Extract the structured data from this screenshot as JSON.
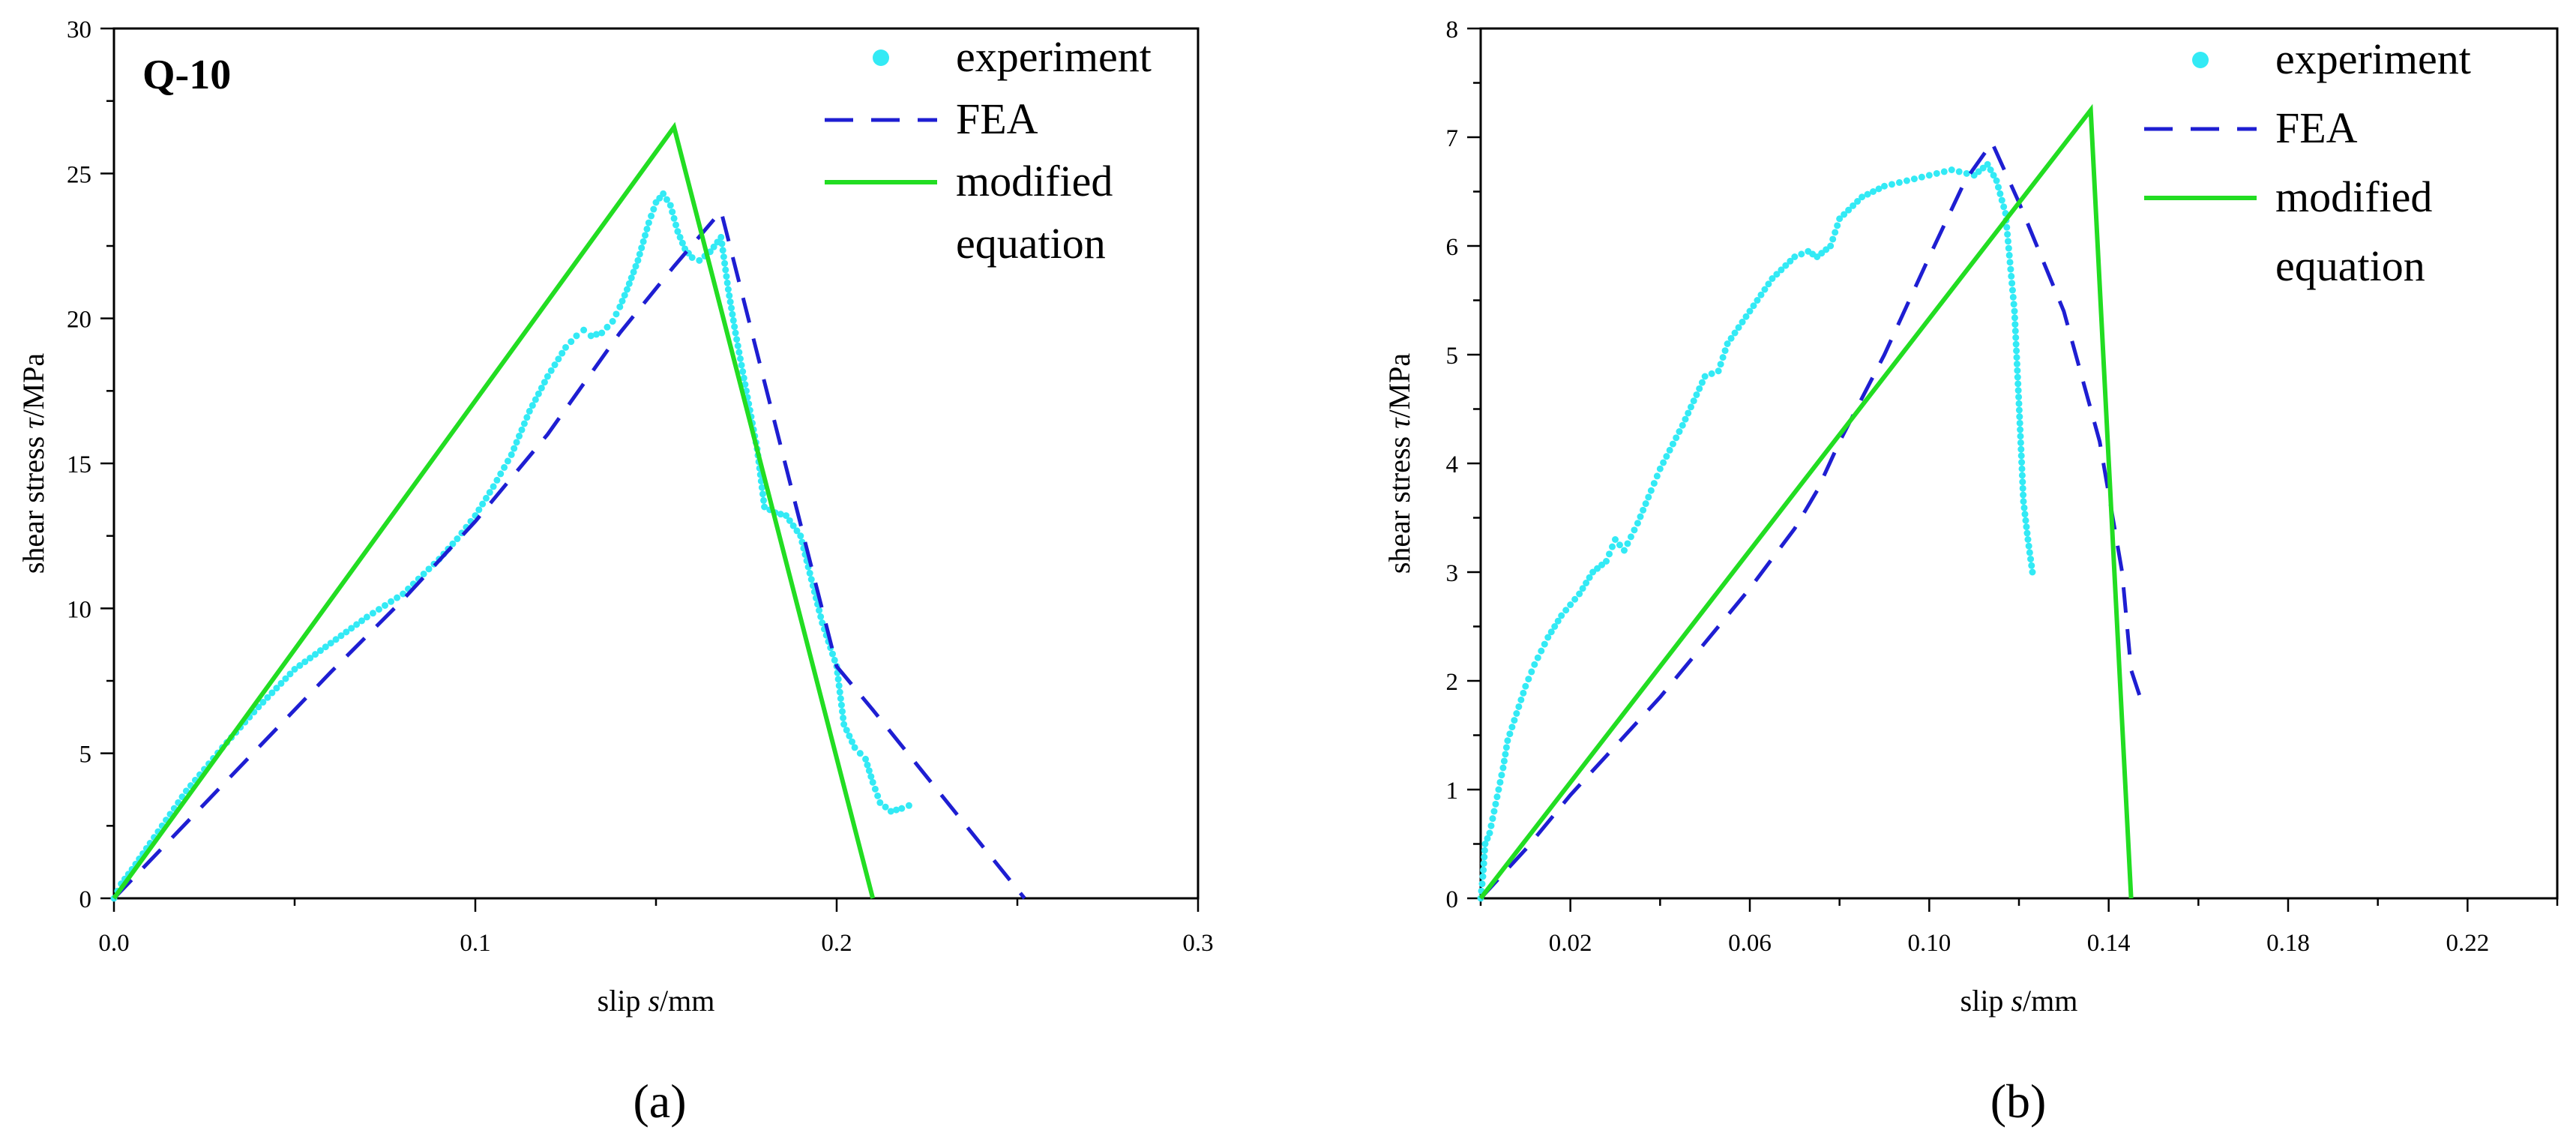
{
  "figure": {
    "panel_labels": [
      "(a)",
      "(b)"
    ]
  },
  "chart_data": [
    {
      "type": "line",
      "panel": "(a)",
      "title": "Q-10",
      "xlabel_prefix": "slip ",
      "xlabel_var": "s",
      "xlabel_suffix": "/mm",
      "ylabel_prefix": "shear stress ",
      "ylabel_var": "τ",
      "ylabel_suffix": "/MPa",
      "xlim": [
        0.0,
        0.3
      ],
      "ylim": [
        0,
        30
      ],
      "xticks": [
        0.0,
        0.1,
        0.2,
        0.3
      ],
      "xtick_labels": [
        "0.0",
        "0.1",
        "0.2",
        "0.3"
      ],
      "yticks": [
        0,
        5,
        10,
        15,
        20,
        25,
        30
      ],
      "ytick_labels": [
        "0",
        "5",
        "10",
        "15",
        "20",
        "25",
        "30"
      ],
      "grid": false,
      "legend_position": "top-right",
      "legend": [
        {
          "name": "experiment",
          "lines": [
            "experiment"
          ],
          "style": "dots",
          "color": "#33eaf5"
        },
        {
          "name": "FEA",
          "lines": [
            "FEA"
          ],
          "style": "dashed",
          "color": "#1e1ed2"
        },
        {
          "name": "modified equation",
          "lines": [
            "modified",
            "equation"
          ],
          "style": "solid",
          "color": "#22dd22"
        }
      ],
      "series": [
        {
          "name": "experiment",
          "style": "dots",
          "color": "#33eaf5",
          "x": [
            0.0,
            0.002,
            0.005,
            0.01,
            0.02,
            0.03,
            0.04,
            0.05,
            0.06,
            0.07,
            0.08,
            0.09,
            0.095,
            0.1,
            0.105,
            0.11,
            0.115,
            0.12,
            0.125,
            0.128,
            0.13,
            0.132,
            0.135,
            0.138,
            0.14,
            0.142,
            0.145,
            0.148,
            0.15,
            0.152,
            0.154,
            0.156,
            0.158,
            0.16,
            0.162,
            0.165,
            0.168,
            0.17,
            0.172,
            0.175,
            0.178,
            0.18,
            0.183,
            0.186,
            0.19,
            0.193,
            0.196,
            0.2,
            0.202,
            0.205,
            0.208,
            0.21,
            0.212,
            0.215,
            0.218,
            0.22
          ],
          "y": [
            0.0,
            0.5,
            1.0,
            1.9,
            3.7,
            5.2,
            6.6,
            7.9,
            8.8,
            9.7,
            10.5,
            11.7,
            12.4,
            13.2,
            14.2,
            15.3,
            16.8,
            18.0,
            19.0,
            19.4,
            19.6,
            19.4,
            19.5,
            19.9,
            20.4,
            21.0,
            22.0,
            23.3,
            24.0,
            24.3,
            23.9,
            23.0,
            22.4,
            22.1,
            22.0,
            22.3,
            22.8,
            21.0,
            19.5,
            17.5,
            15.5,
            13.5,
            13.3,
            13.2,
            12.5,
            11.0,
            9.5,
            8.0,
            6.0,
            5.2,
            4.8,
            4.0,
            3.3,
            3.0,
            3.1,
            3.2
          ]
        },
        {
          "name": "FEA",
          "style": "dashed",
          "color": "#1e1ed2",
          "x": [
            0.0,
            0.02,
            0.04,
            0.06,
            0.08,
            0.1,
            0.12,
            0.14,
            0.155,
            0.168,
            0.2,
            0.21,
            0.252
          ],
          "y": [
            0.0,
            2.6,
            5.2,
            7.8,
            10.3,
            13.0,
            16.0,
            19.5,
            21.8,
            23.7,
            8.0,
            6.5,
            0.0
          ]
        },
        {
          "name": "modified equation",
          "style": "solid",
          "color": "#22dd22",
          "x": [
            0.0,
            0.155,
            0.21
          ],
          "y": [
            0.0,
            26.6,
            0.0
          ]
        }
      ]
    },
    {
      "type": "line",
      "panel": "(b)",
      "title": "",
      "xlabel_prefix": "slip ",
      "xlabel_var": "s",
      "xlabel_suffix": "/mm",
      "ylabel_prefix": "shear stress ",
      "ylabel_var": "τ",
      "ylabel_suffix": "/MPa",
      "xlim": [
        0.0,
        0.24
      ],
      "ylim": [
        0,
        8
      ],
      "xticks": [
        0.02,
        0.06,
        0.1,
        0.14,
        0.18,
        0.22
      ],
      "xtick_labels": [
        "0.02",
        "0.06",
        "0.10",
        "0.14",
        "0.18",
        "0.22"
      ],
      "yticks": [
        0,
        1,
        2,
        3,
        4,
        5,
        6,
        7,
        8
      ],
      "ytick_labels": [
        "0",
        "1",
        "2",
        "3",
        "4",
        "5",
        "6",
        "7",
        "8"
      ],
      "grid": false,
      "legend_position": "top-right",
      "legend": [
        {
          "name": "experiment",
          "lines": [
            "experiment"
          ],
          "style": "dots",
          "color": "#33eaf5"
        },
        {
          "name": "FEA",
          "lines": [
            "FEA"
          ],
          "style": "dashed",
          "color": "#1e1ed2"
        },
        {
          "name": "modified equation",
          "lines": [
            "modified",
            "equation"
          ],
          "style": "solid",
          "color": "#22dd22"
        }
      ],
      "series": [
        {
          "name": "experiment",
          "style": "dots",
          "color": "#33eaf5",
          "x": [
            0.0,
            0.0005,
            0.001,
            0.002,
            0.003,
            0.004,
            0.005,
            0.006,
            0.008,
            0.01,
            0.012,
            0.015,
            0.018,
            0.02,
            0.022,
            0.025,
            0.028,
            0.03,
            0.032,
            0.035,
            0.038,
            0.04,
            0.045,
            0.05,
            0.053,
            0.055,
            0.06,
            0.065,
            0.07,
            0.073,
            0.075,
            0.078,
            0.08,
            0.085,
            0.09,
            0.095,
            0.1,
            0.105,
            0.11,
            0.113,
            0.115,
            0.117,
            0.118,
            0.119,
            0.12,
            0.121,
            0.122,
            0.123
          ],
          "y": [
            0.0,
            0.2,
            0.5,
            0.6,
            0.8,
            1.0,
            1.2,
            1.45,
            1.7,
            1.95,
            2.15,
            2.4,
            2.6,
            2.7,
            2.8,
            3.0,
            3.1,
            3.3,
            3.2,
            3.45,
            3.75,
            3.95,
            4.35,
            4.8,
            4.85,
            5.1,
            5.4,
            5.7,
            5.9,
            5.95,
            5.9,
            6.0,
            6.25,
            6.45,
            6.55,
            6.6,
            6.65,
            6.7,
            6.65,
            6.75,
            6.6,
            6.3,
            5.85,
            5.4,
            4.55,
            3.65,
            3.3,
            3.0
          ]
        },
        {
          "name": "FEA",
          "style": "dashed",
          "color": "#1e1ed2",
          "x": [
            0.0,
            0.01,
            0.02,
            0.04,
            0.06,
            0.07,
            0.075,
            0.08,
            0.09,
            0.1,
            0.108,
            0.114,
            0.12,
            0.13,
            0.138,
            0.143,
            0.145,
            0.147
          ],
          "y": [
            0.0,
            0.45,
            0.95,
            1.85,
            2.85,
            3.4,
            3.75,
            4.2,
            5.0,
            5.9,
            6.6,
            6.95,
            6.4,
            5.4,
            4.2,
            3.0,
            2.1,
            1.85
          ]
        },
        {
          "name": "modified equation",
          "style": "solid",
          "color": "#22dd22",
          "x": [
            0.0,
            0.136,
            0.145
          ],
          "y": [
            0.0,
            7.25,
            0.0
          ]
        }
      ]
    }
  ]
}
